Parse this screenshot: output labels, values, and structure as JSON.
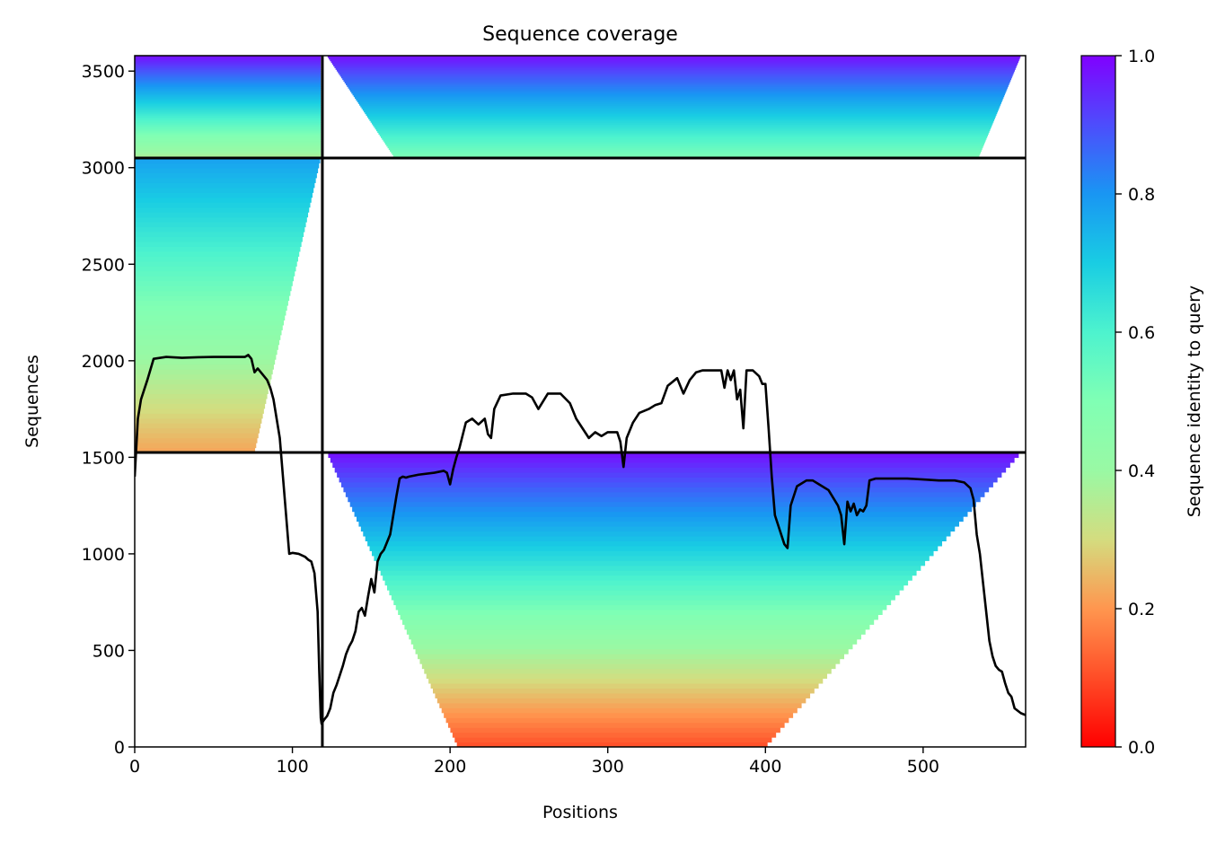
{
  "chart_data": {
    "type": "heatmap",
    "title": "Sequence coverage",
    "xlabel": "Positions",
    "ylabel": "Sequences",
    "xlim": [
      0,
      565
    ],
    "ylim": [
      0,
      3580
    ],
    "x_ticks": [
      0,
      100,
      200,
      300,
      400,
      500
    ],
    "y_ticks": [
      0,
      500,
      1000,
      1500,
      2000,
      2500,
      3000,
      3500
    ],
    "grid": false,
    "colorbar": {
      "label": "Sequence identity to query",
      "colormap": "rainbow",
      "range": [
        0,
        1
      ],
      "ticks": [
        "0.0",
        "0.2",
        "0.4",
        "0.6",
        "0.8",
        "1.0"
      ]
    },
    "divider_positions_x": [
      119
    ],
    "divider_sequences_y": [
      1525,
      3050
    ],
    "blocks": [
      {
        "x": [
          0,
          119
        ],
        "y": [
          0,
          1525
        ],
        "coverage": "empty"
      },
      {
        "x": [
          119,
          565
        ],
        "y": [
          1525,
          3050
        ],
        "coverage": "empty"
      },
      {
        "x": [
          0,
          119
        ],
        "y": [
          1525,
          3050
        ],
        "identity_bottom": 0.22,
        "identity_top": 0.78,
        "filled_x_end_bottom": 76,
        "filled_x_end_top": 118
      },
      {
        "x": [
          119,
          565
        ],
        "y": [
          0,
          1525
        ],
        "identity_bottom": 0.1,
        "identity_top": 0.98,
        "filled_x_start_bottom": 205,
        "filled_x_start_top": 122,
        "filled_x_end_bottom": 400,
        "filled_x_end_top": 562
      },
      {
        "x": [
          0,
          119
        ],
        "y": [
          3050,
          3580
        ],
        "identity_bottom": 0.36,
        "identity_top": 0.98,
        "filled_x_end_bottom": 118,
        "filled_x_end_top": 118
      },
      {
        "x": [
          119,
          565
        ],
        "y": [
          3050,
          3580
        ],
        "identity_bottom": 0.5,
        "identity_top": 0.98,
        "filled_x_start_bottom": 165,
        "filled_x_start_top": 122,
        "filled_x_end_bottom": 535,
        "filled_x_end_top": 562
      }
    ],
    "series": [
      {
        "name": "coverage",
        "color": "#000000",
        "x": [
          0,
          2,
          4,
          6,
          8,
          12,
          20,
          30,
          40,
          50,
          60,
          70,
          72,
          74,
          76,
          78,
          80,
          84,
          86,
          88,
          90,
          92,
          94,
          96,
          98,
          100,
          104,
          108,
          110,
          112,
          114,
          116,
          117,
          118,
          118.5,
          120,
          122,
          124,
          126,
          128,
          130,
          132,
          134,
          136,
          138,
          140,
          142,
          144,
          146,
          148,
          150,
          152,
          154,
          156,
          158,
          160,
          162,
          164,
          166,
          168,
          170,
          172,
          174,
          180,
          190,
          196,
          198,
          200,
          202,
          204,
          206,
          210,
          214,
          218,
          222,
          224,
          226,
          228,
          232,
          240,
          248,
          252,
          256,
          262,
          266,
          270,
          276,
          280,
          284,
          288,
          292,
          296,
          300,
          306,
          308,
          310,
          312,
          316,
          320,
          326,
          330,
          334,
          338,
          344,
          348,
          352,
          356,
          360,
          366,
          372,
          374,
          376,
          378,
          380,
          382,
          384,
          386,
          388,
          392,
          396,
          398,
          400,
          402,
          404,
          406,
          408,
          410,
          412,
          414,
          416,
          420,
          426,
          430,
          434,
          440,
          446,
          448,
          450,
          452,
          454,
          456,
          458,
          460,
          462,
          464,
          466,
          470,
          480,
          490,
          500,
          510,
          520,
          526,
          530,
          532,
          534,
          536,
          538,
          540,
          542,
          544,
          546,
          548,
          550,
          552,
          554,
          556,
          558,
          562,
          565
        ],
        "y": [
          1400,
          1700,
          1800,
          1850,
          1900,
          2010,
          2020,
          2015,
          2018,
          2020,
          2020,
          2020,
          2030,
          2010,
          1940,
          1960,
          1940,
          1900,
          1860,
          1800,
          1700,
          1600,
          1400,
          1200,
          1000,
          1005,
          1000,
          985,
          970,
          960,
          900,
          700,
          400,
          150,
          120,
          140,
          160,
          200,
          280,
          320,
          370,
          420,
          480,
          520,
          550,
          600,
          700,
          720,
          680,
          780,
          870,
          800,
          960,
          1000,
          1020,
          1060,
          1100,
          1200,
          1300,
          1390,
          1400,
          1395,
          1400,
          1410,
          1420,
          1430,
          1420,
          1360,
          1440,
          1500,
          1550,
          1680,
          1700,
          1670,
          1700,
          1620,
          1600,
          1750,
          1820,
          1830,
          1830,
          1810,
          1750,
          1830,
          1830,
          1830,
          1780,
          1700,
          1650,
          1600,
          1630,
          1610,
          1630,
          1630,
          1580,
          1450,
          1600,
          1680,
          1730,
          1750,
          1770,
          1780,
          1870,
          1910,
          1830,
          1900,
          1940,
          1950,
          1950,
          1950,
          1860,
          1950,
          1900,
          1950,
          1800,
          1850,
          1650,
          1950,
          1950,
          1920,
          1880,
          1880,
          1650,
          1400,
          1200,
          1150,
          1100,
          1050,
          1030,
          1250,
          1350,
          1380,
          1380,
          1360,
          1330,
          1250,
          1200,
          1050,
          1270,
          1220,
          1260,
          1200,
          1230,
          1220,
          1250,
          1380,
          1390,
          1390,
          1390,
          1385,
          1380,
          1380,
          1370,
          1340,
          1280,
          1100,
          1000,
          850,
          700,
          550,
          470,
          420,
          400,
          390,
          330,
          280,
          260,
          200,
          175,
          165
        ]
      }
    ]
  }
}
